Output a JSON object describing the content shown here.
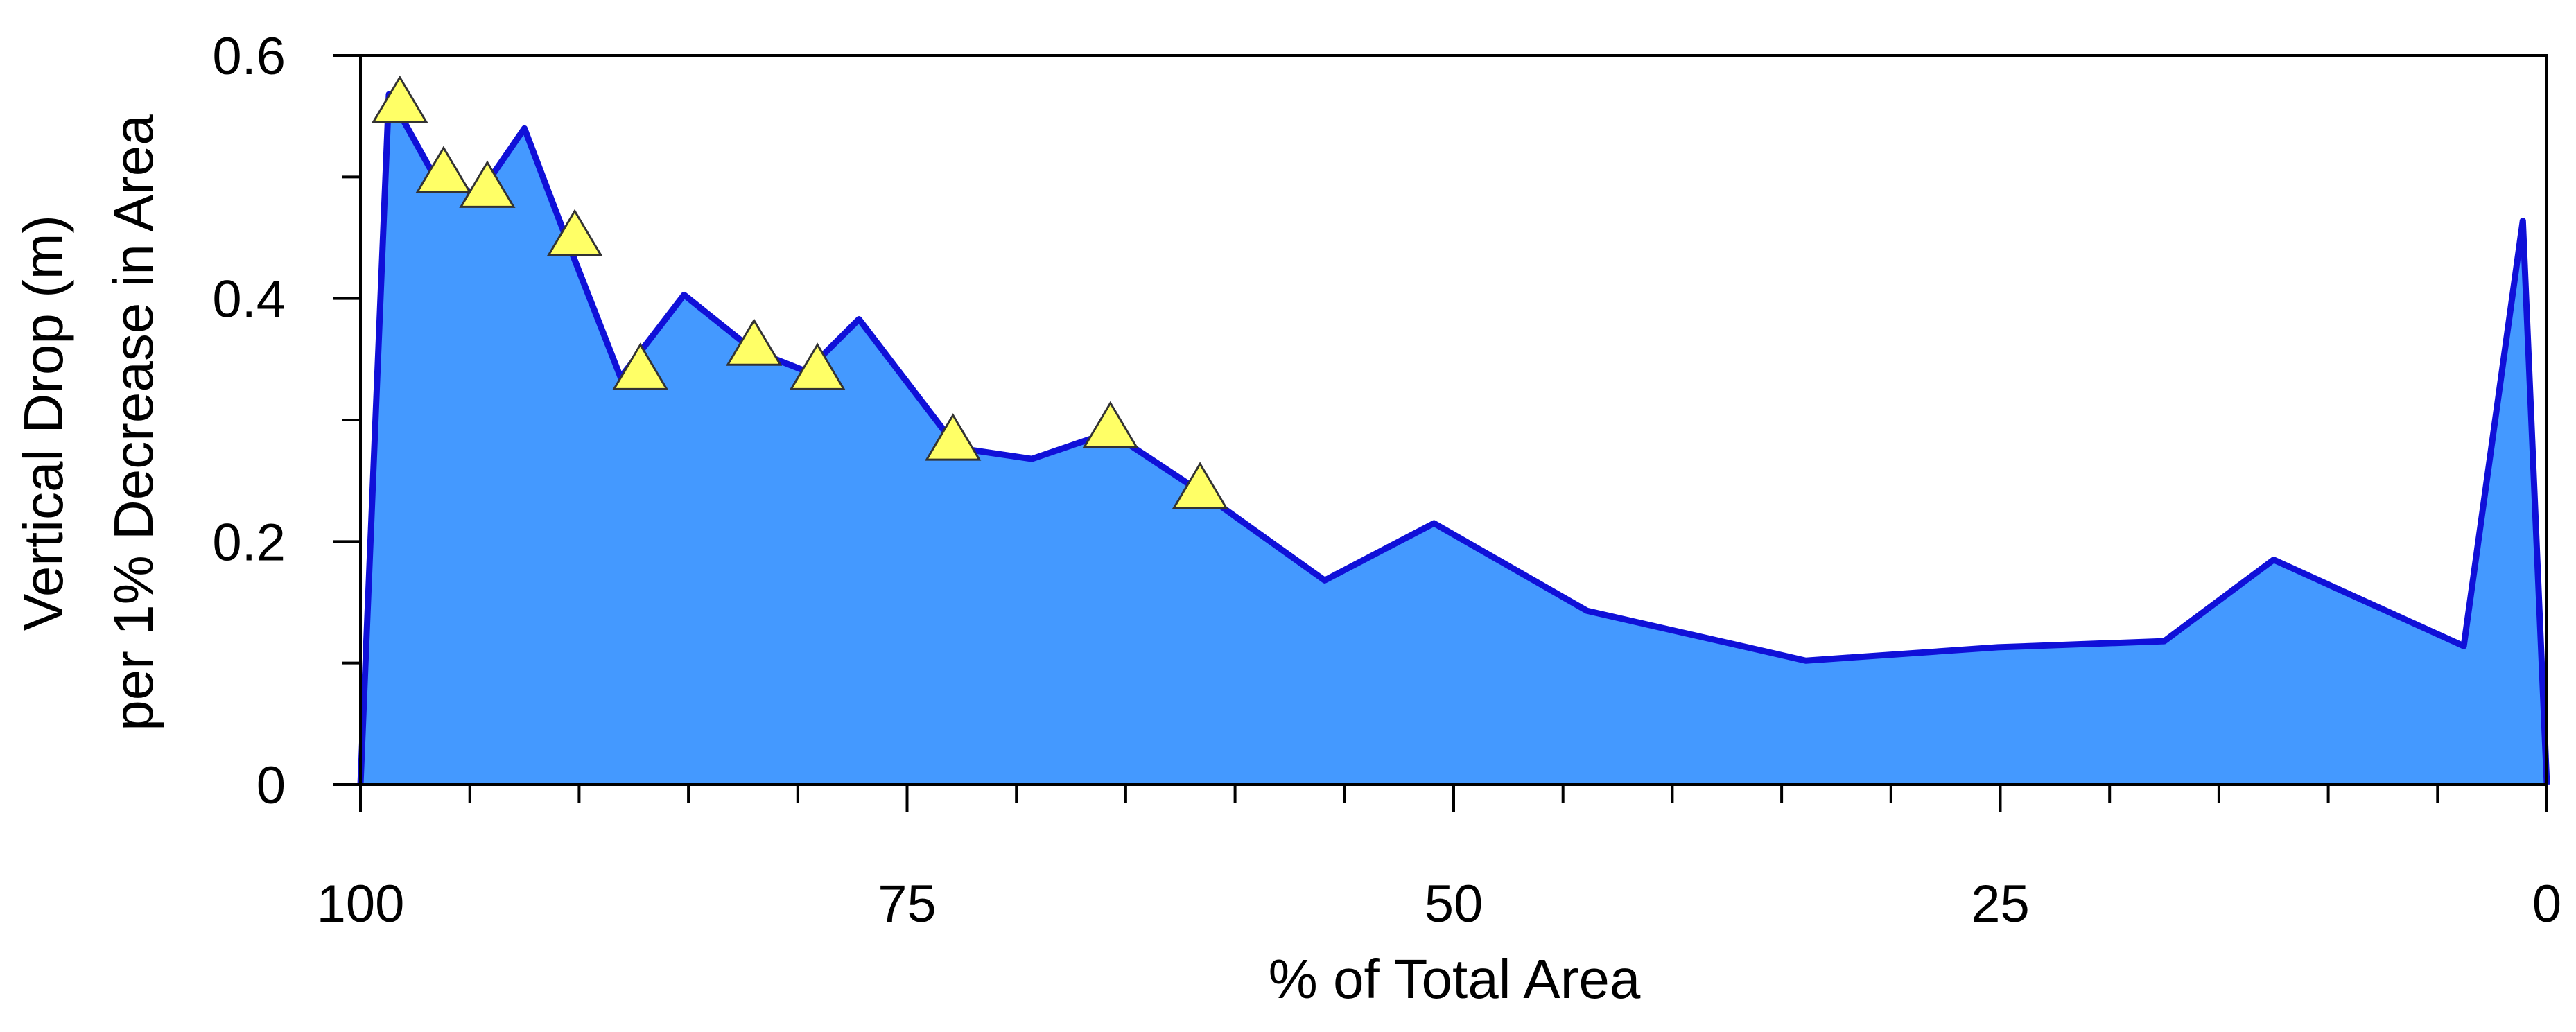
{
  "chart_data": {
    "type": "area",
    "xlabel": "% of Total Area",
    "ylabel": [
      "Vertical Drop (m)",
      "per 1% Decrease in Area"
    ],
    "xlim": [
      100,
      0
    ],
    "ylim": [
      0,
      0.6
    ],
    "x_ticks": [
      100,
      75,
      50,
      25,
      0
    ],
    "x_tick_labels": [
      "100",
      "75",
      "50",
      "25",
      "0"
    ],
    "x_minor_step": 5,
    "y_ticks": [
      0,
      0.2,
      0.4,
      0.6
    ],
    "y_tick_labels": [
      "0",
      "0.2",
      "0.4",
      "0.6"
    ],
    "y_minor_step": 0.1,
    "grid": false,
    "colors": {
      "fill": "#4499ff",
      "line": "#1010d8",
      "marker": "#ffff66"
    },
    "series": [
      {
        "x": [
          100,
          98.7,
          96.6,
          94.6,
          92.5,
          90.6,
          88.1,
          85.2,
          82.0,
          79.6,
          77.2,
          72.7,
          69.3,
          65.7,
          61.5,
          55.9,
          50.9,
          43.9,
          33.9,
          25.1,
          17.5,
          12.5,
          3.8,
          1.1,
          0
        ],
        "y": [
          0,
          0.568,
          0.5,
          0.485,
          0.54,
          0.45,
          0.335,
          0.403,
          0.357,
          0.34,
          0.383,
          0.277,
          0.268,
          0.29,
          0.24,
          0.168,
          0.215,
          0.143,
          0.102,
          0.113,
          0.118,
          0.185,
          0.114,
          0.464,
          0
        ]
      }
    ],
    "markers": {
      "shape": "triangle",
      "x": [
        98.2,
        96.2,
        94.2,
        90.2,
        87.2,
        82.0,
        79.1,
        72.9,
        65.7,
        61.6
      ],
      "y": [
        0.558,
        0.5,
        0.488,
        0.448,
        0.338,
        0.358,
        0.338,
        0.28,
        0.29,
        0.24
      ]
    }
  }
}
